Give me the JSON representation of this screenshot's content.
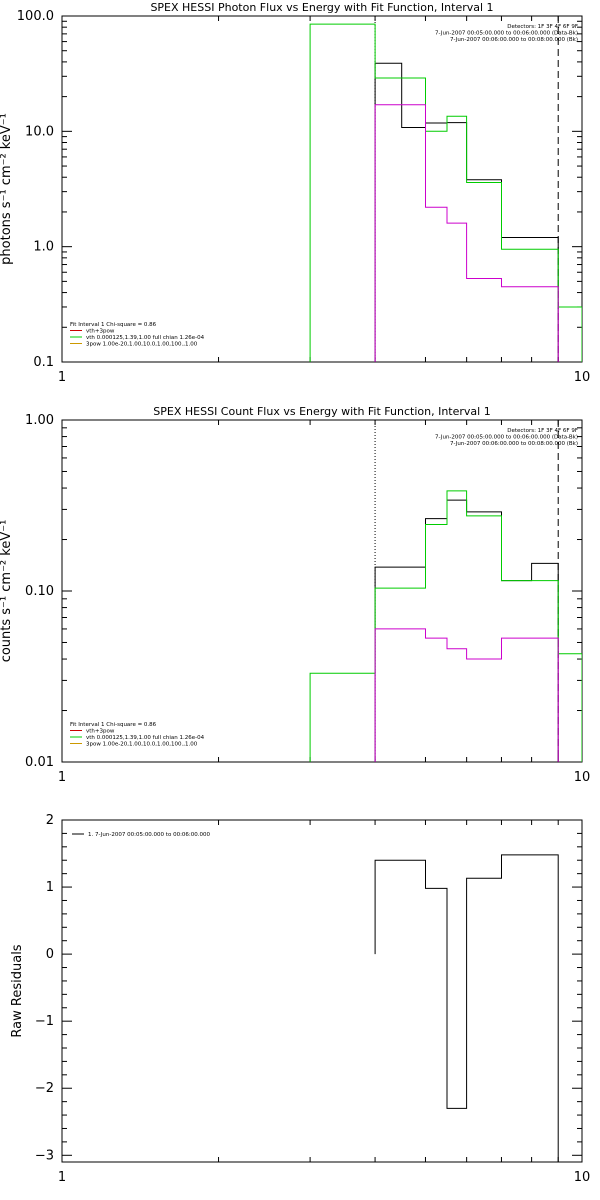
{
  "chart_data": [
    {
      "type": "line",
      "title": "SPEX HESSI Photon Flux vs Energy with Fit Function, Interval 1",
      "ylabel": "photons s⁻¹ cm⁻² keV⁻¹",
      "xlabel": "",
      "xscale": "log",
      "yscale": "log",
      "xlim": [
        1,
        10
      ],
      "ylim": [
        0.1,
        100
      ],
      "x_ticks": [
        "1",
        "10"
      ],
      "y_ticks": [
        {
          "v": 0.1,
          "label": "0.1"
        },
        {
          "v": 1,
          "label": "1.0"
        },
        {
          "v": 10,
          "label": "10.0"
        },
        {
          "v": 100,
          "label": "100.0"
        }
      ],
      "vlines": [
        {
          "x": 4.0,
          "style": "dotted",
          "color": "#000000"
        },
        {
          "x": 9.0,
          "style": "dashed",
          "color": "#000000"
        }
      ],
      "legend_top": [
        {
          "text": "Detectors: 1F 3F 4F 6F 9F",
          "color": "#000000"
        },
        {
          "text": "7-Jun-2007 00:05:00.000 to 00:06:00.000 (Data-Bk)",
          "color": "#000000"
        },
        {
          "text": "7-Jun-2007 00:06:00.000 to 00:08:00.000 (Bk)",
          "color": "#cc00cc"
        }
      ],
      "legend_bottom": [
        {
          "text": "Fit Interval 1   Chi-square = 0.86",
          "color": "#000000"
        },
        {
          "text": "vth+3pow",
          "color": "#cc0000"
        },
        {
          "text": "vth 0.000125,1.39,1.00  full chian 1.26e-04",
          "color": "#00cc00"
        },
        {
          "text": "3pow 1.00e-20,1.00,10.0,1.00,100.,1.00",
          "color": "#cc9900"
        }
      ],
      "series": [
        {
          "color": "#000000",
          "edges": [
            4.0,
            4.5,
            5.0,
            5.5,
            6.0,
            7.0,
            8.0,
            9.0
          ],
          "values": [
            39,
            10.8,
            11.8,
            11.9,
            3.8,
            1.2,
            1.2
          ]
        },
        {
          "color": "#00cc00",
          "edges": [
            3.0,
            4.0,
            5.0,
            5.5,
            6.0,
            7.0,
            8.0,
            9.0,
            10.0
          ],
          "values": [
            85,
            29,
            10.0,
            13.5,
            3.6,
            0.95,
            0.95,
            0.3
          ]
        },
        {
          "color": "#cc00cc",
          "edges": [
            4.0,
            5.0,
            5.5,
            6.0,
            7.0,
            8.0,
            9.0
          ],
          "values": [
            17,
            2.2,
            1.6,
            0.53,
            0.45,
            0.45
          ]
        }
      ]
    },
    {
      "type": "line",
      "title": "SPEX HESSI Count Flux vs Energy with Fit Function, Interval 1",
      "ylabel": "counts s⁻¹ cm⁻² keV⁻¹",
      "xlabel": "",
      "xscale": "log",
      "yscale": "log",
      "xlim": [
        1,
        10
      ],
      "ylim": [
        0.01,
        1
      ],
      "x_ticks": [
        "1",
        "10"
      ],
      "y_ticks": [
        {
          "v": 0.01,
          "label": "0.01"
        },
        {
          "v": 0.1,
          "label": "0.10"
        },
        {
          "v": 1,
          "label": "1.00"
        }
      ],
      "vlines": [
        {
          "x": 4.0,
          "style": "dotted",
          "color": "#000000"
        },
        {
          "x": 9.0,
          "style": "dashed",
          "color": "#000000"
        }
      ],
      "legend_top": [
        {
          "text": "Detectors: 1F 3F 4F 6F 9F",
          "color": "#000000"
        },
        {
          "text": "7-Jun-2007 00:05:00.000 to 00:06:00.000 (Data-Bk)",
          "color": "#000000"
        },
        {
          "text": "7-Jun-2007 00:06:00.000 to 00:08:00.000 (Bk)",
          "color": "#cc00cc"
        }
      ],
      "legend_bottom": [
        {
          "text": "Fit Interval 1   Chi-square = 0.86",
          "color": "#000000"
        },
        {
          "text": "vth+3pow",
          "color": "#cc0000"
        },
        {
          "text": "vth 0.000125,1.39,1.00  full chian 1.26e-04",
          "color": "#00cc00"
        },
        {
          "text": "3pow 1.00e-20,1.00,10.0,1.00,100.,1.00",
          "color": "#cc9900"
        }
      ],
      "series": [
        {
          "color": "#000000",
          "edges": [
            4.0,
            5.0,
            5.5,
            6.0,
            7.0,
            8.0,
            9.0
          ],
          "values": [
            0.138,
            0.265,
            0.34,
            0.29,
            0.115,
            0.145
          ]
        },
        {
          "color": "#00cc00",
          "edges": [
            3.0,
            4.0,
            4.5,
            5.0,
            5.5,
            6.0,
            7.0,
            8.0,
            9.0,
            10.0
          ],
          "values": [
            0.033,
            0.104,
            0.104,
            0.245,
            0.385,
            0.275,
            0.115,
            0.115,
            0.043
          ]
        },
        {
          "color": "#cc00cc",
          "edges": [
            4.0,
            5.0,
            5.5,
            6.0,
            7.0,
            8.0,
            9.0
          ],
          "values": [
            0.06,
            0.053,
            0.046,
            0.04,
            0.053,
            0.053
          ]
        }
      ]
    },
    {
      "type": "line",
      "title": "",
      "ylabel": "Raw Residuals",
      "xlabel": "",
      "xscale": "log",
      "yscale": "linear",
      "xlim": [
        1,
        10
      ],
      "ylim": [
        -3.1,
        2
      ],
      "x_ticks": [
        "1",
        "10"
      ],
      "y_ticks": [
        {
          "v": 2,
          "label": "2"
        },
        {
          "v": 1,
          "label": "1"
        },
        {
          "v": 0,
          "label": "0"
        },
        {
          "v": -1,
          "label": "−1"
        },
        {
          "v": -2,
          "label": "−2"
        },
        {
          "v": -3,
          "label": "−3"
        }
      ],
      "vlines": [],
      "legend_top": [],
      "legend_bottom": [],
      "legend_left": {
        "text": "1.  7-Jun-2007 00:05:00.000 to 00:06:00.000",
        "color": "#000000"
      },
      "series": [
        {
          "color": "#000000",
          "edges": [
            4.0,
            5.0,
            5.5,
            6.0,
            7.0,
            8.0,
            9.0
          ],
          "values": [
            1.4,
            0.98,
            -2.3,
            1.13,
            1.48,
            1.48
          ]
        }
      ]
    }
  ]
}
